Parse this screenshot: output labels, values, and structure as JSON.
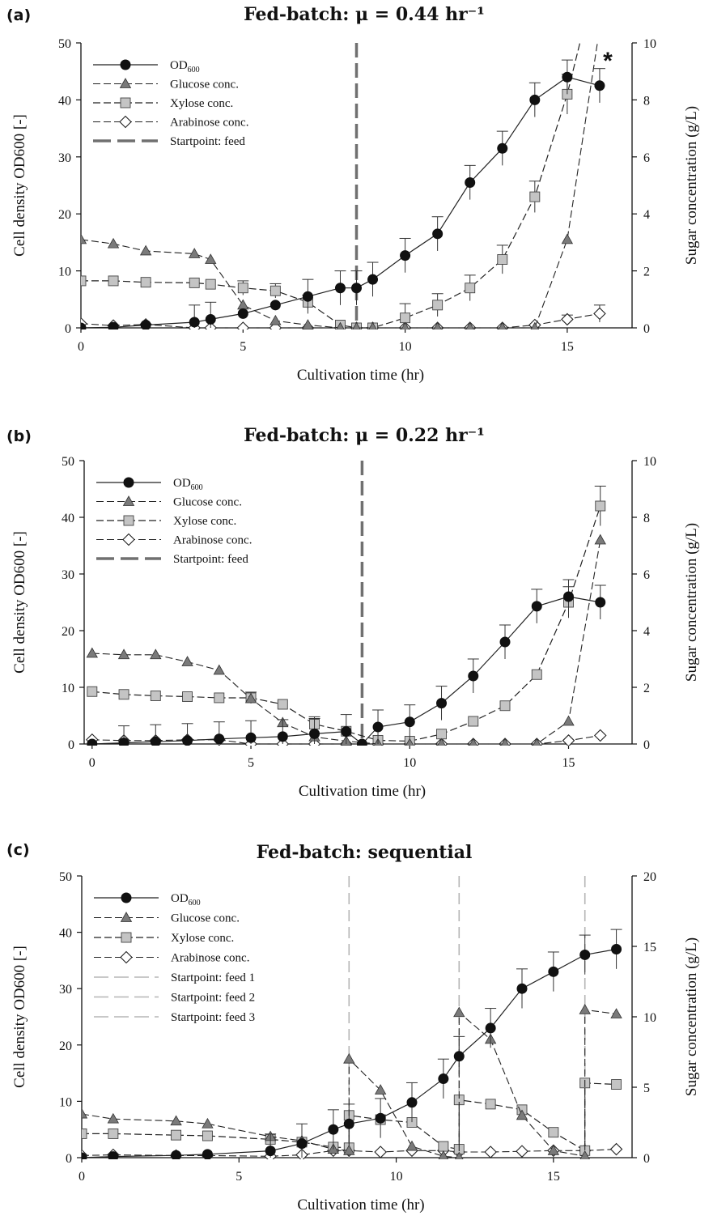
{
  "chart_data": [
    {
      "type": "line",
      "panel_label": "(a)",
      "title": "Fed-batch:  μ = 0.44 hr⁻¹",
      "xlabel": "Cultivation time (hr)",
      "ylabel_left": "Cell density OD600 [-]",
      "ylabel_right": "Sugar concentration (g/L)",
      "xlim": [
        0,
        17
      ],
      "ylim_left": [
        0,
        50
      ],
      "ylim_right": [
        0,
        10
      ],
      "xticks": [
        0,
        5,
        10,
        15
      ],
      "yticks_left": [
        0,
        10,
        20,
        30,
        40,
        50
      ],
      "yticks_right": [
        0,
        2,
        4,
        6,
        8,
        10
      ],
      "legend_position": "top-left",
      "annotation": "*",
      "series": [
        {
          "name": "OD600",
          "axis": "left",
          "marker": "circle",
          "x": [
            0,
            1,
            2,
            3.5,
            4,
            5,
            6,
            7,
            8,
            8.5,
            9,
            10,
            11,
            12,
            13,
            14,
            15,
            16
          ],
          "y": [
            0,
            0.1,
            0.5,
            1,
            1.5,
            2.5,
            4,
            5.5,
            7,
            7,
            8.5,
            12.7,
            16.5,
            25.5,
            31.5,
            40,
            44,
            42.5
          ],
          "err": [
            0,
            0,
            0,
            3,
            3,
            0,
            0,
            3,
            3,
            3,
            3,
            3,
            3,
            3,
            3,
            3,
            3,
            3
          ]
        },
        {
          "name": "Glucose conc.",
          "axis": "right",
          "marker": "triangle",
          "x": [
            0,
            1,
            2,
            3.5,
            4,
            5,
            6,
            7,
            8,
            8.5,
            9,
            10,
            11,
            12,
            13,
            14,
            15,
            16
          ],
          "y": [
            3.1,
            2.95,
            2.7,
            2.6,
            2.4,
            0.8,
            0.25,
            0.1,
            0,
            0,
            0,
            0,
            0,
            0,
            0,
            0,
            3.1,
            10.5
          ]
        },
        {
          "name": "Xylose conc.",
          "axis": "right",
          "marker": "square",
          "x": [
            0,
            1,
            2,
            3.5,
            4,
            5,
            6,
            7,
            8,
            8.5,
            9,
            10,
            11,
            12,
            13,
            14,
            15,
            15.5
          ],
          "y": [
            1.65,
            1.65,
            1.6,
            1.58,
            1.53,
            1.4,
            1.3,
            0.9,
            0.1,
            0,
            0,
            0.35,
            0.8,
            1.4,
            2.4,
            4.6,
            8.2,
            10.5
          ],
          "err": [
            0,
            0,
            0,
            0,
            0,
            0.25,
            0.25,
            0.25,
            0,
            0,
            0,
            0.5,
            0.4,
            0.45,
            0.5,
            0.55,
            0.7,
            0
          ]
        },
        {
          "name": "Arabinose conc.",
          "axis": "right",
          "marker": "diamond",
          "x": [
            0,
            1,
            2,
            3.5,
            4,
            5,
            6,
            7,
            8,
            8.5,
            9,
            10,
            11,
            12,
            13,
            14,
            15,
            16
          ],
          "y": [
            0.15,
            0.08,
            0.12,
            0,
            0,
            0,
            0,
            0,
            0,
            0,
            0,
            0,
            0,
            0,
            0,
            0.1,
            0.3,
            0.5
          ],
          "err": [
            0,
            0,
            0,
            0,
            0,
            0,
            0,
            0,
            0,
            0,
            0,
            0,
            0,
            0,
            0,
            0,
            0.15,
            0.3
          ]
        },
        {
          "name": "Startpoint: feed",
          "axis": "vline",
          "x": [
            8.5
          ]
        }
      ]
    },
    {
      "type": "line",
      "panel_label": "(b)",
      "title": "Fed-batch:  μ = 0.22 hr⁻¹",
      "xlabel": "Cultivation time (hr)",
      "ylabel_left": "Cell density OD600 [-]",
      "ylabel_right": "Sugar concentration (g/L)",
      "xlim": [
        -0.25,
        17
      ],
      "ylim_left": [
        0,
        50
      ],
      "ylim_right": [
        0,
        10
      ],
      "xticks": [
        0,
        5,
        10,
        15
      ],
      "yticks_left": [
        0,
        10,
        20,
        30,
        40,
        50
      ],
      "yticks_right": [
        0,
        2,
        4,
        6,
        8,
        10
      ],
      "legend_position": "top-left",
      "series": [
        {
          "name": "OD600",
          "axis": "left",
          "marker": "circle",
          "x": [
            0,
            1,
            2,
            3,
            4,
            5,
            6,
            7,
            8,
            8.5,
            9,
            10,
            11,
            12,
            13,
            14,
            15,
            16
          ],
          "y": [
            0,
            0.2,
            0.4,
            0.6,
            0.9,
            1.1,
            1.3,
            1.8,
            2.2,
            0,
            3,
            3.9,
            7.2,
            12,
            18,
            24.3,
            26,
            25
          ],
          "err": [
            0,
            3,
            3,
            3,
            3,
            3,
            3,
            3,
            3,
            0,
            3,
            3,
            3,
            3,
            3,
            3,
            3,
            3
          ]
        },
        {
          "name": "Glucose conc.",
          "axis": "right",
          "marker": "triangle",
          "x": [
            0,
            1,
            2,
            3,
            4,
            5,
            6,
            7,
            8,
            9,
            10,
            11,
            12,
            13,
            14,
            15,
            16
          ],
          "y": [
            3.2,
            3.15,
            3.15,
            2.9,
            2.6,
            1.6,
            0.75,
            0.25,
            0.1,
            0,
            0,
            0,
            0,
            0,
            0,
            0.8,
            7.2
          ]
        },
        {
          "name": "Xylose conc.",
          "axis": "right",
          "marker": "square",
          "x": [
            0,
            1,
            2,
            3,
            4,
            5,
            6,
            7,
            8,
            9,
            10,
            11,
            12,
            13,
            14,
            15,
            16
          ],
          "y": [
            1.85,
            1.75,
            1.7,
            1.67,
            1.63,
            1.63,
            1.4,
            0.7,
            0.45,
            0.13,
            0.1,
            0.35,
            0.8,
            1.35,
            2.45,
            5,
            8.4
          ],
          "err": [
            0,
            0,
            0,
            0,
            0,
            0.2,
            0,
            0.2,
            0,
            0,
            0,
            0,
            0,
            0,
            0,
            0.55,
            0.7
          ]
        },
        {
          "name": "Arabinose conc.",
          "axis": "right",
          "marker": "diamond",
          "x": [
            0,
            1,
            2,
            3,
            4,
            5,
            6,
            7,
            8,
            9,
            10,
            11,
            12,
            13,
            14,
            15,
            16
          ],
          "y": [
            0.15,
            0.12,
            0.12,
            0.15,
            0.15,
            0,
            0,
            0,
            0,
            0,
            0,
            0,
            0,
            0,
            0,
            0.12,
            0.3
          ]
        },
        {
          "name": "Startpoint: feed",
          "axis": "vline",
          "x": [
            8.5
          ]
        }
      ]
    },
    {
      "type": "line",
      "panel_label": "(c)",
      "title": "Fed-batch: sequential",
      "xlabel": "Cultivation time (hr)",
      "ylabel_left": "Cell density OD600 [-]",
      "ylabel_right": "Sugar concentration (g/L)",
      "xlim": [
        0,
        17.5
      ],
      "ylim_left": [
        0,
        50
      ],
      "ylim_right": [
        0,
        20
      ],
      "xticks": [
        0,
        5,
        10,
        15
      ],
      "yticks_left": [
        0,
        10,
        20,
        30,
        40,
        50
      ],
      "yticks_right": [
        0,
        5,
        10,
        15,
        20
      ],
      "legend_position": "top-left",
      "series": [
        {
          "name": "OD600",
          "axis": "left",
          "marker": "circle",
          "x": [
            0,
            1,
            3,
            4,
            6,
            7,
            8,
            8.5,
            9.5,
            10.5,
            11.5,
            12,
            13,
            14,
            15,
            16,
            17
          ],
          "y": [
            0,
            0.2,
            0.4,
            0.6,
            1.2,
            2.5,
            5,
            6,
            7,
            9.8,
            14,
            18,
            23,
            30,
            33,
            36,
            37
          ],
          "err": [
            0,
            0,
            0,
            0,
            3,
            3.5,
            3.5,
            3.5,
            3.5,
            3.5,
            3.5,
            3.5,
            3.5,
            3.5,
            3.5,
            3.5,
            3.5
          ]
        },
        {
          "name": "Glucose conc.",
          "axis": "right",
          "marker": "triangle",
          "x": [
            0,
            1,
            3,
            4,
            6,
            7,
            8,
            8.5,
            8.5,
            9.5,
            10.5,
            11.5,
            12,
            12,
            13,
            14,
            15,
            16,
            16,
            17
          ],
          "y": [
            3.1,
            2.75,
            2.6,
            2.4,
            1.5,
            1.2,
            0.6,
            0.5,
            7,
            4.8,
            0.8,
            0.1,
            0,
            10.3,
            8.4,
            3,
            0.5,
            0.1,
            10.5,
            10.2
          ]
        },
        {
          "name": "Xylose conc.",
          "axis": "right",
          "marker": "square",
          "x": [
            0,
            1,
            3,
            4,
            6,
            7,
            8,
            8.5,
            8.5,
            9.5,
            10.5,
            11.5,
            12,
            12,
            13,
            14,
            15,
            16,
            16,
            17
          ],
          "y": [
            1.7,
            1.7,
            1.6,
            1.55,
            1.3,
            1.1,
            0.75,
            0.7,
            3,
            2.7,
            2.5,
            0.8,
            0.6,
            4.1,
            3.8,
            3.4,
            1.8,
            0.5,
            5.3,
            5.2
          ]
        },
        {
          "name": "Arabinose conc.",
          "axis": "right",
          "marker": "diamond",
          "x": [
            0,
            1,
            3,
            4,
            6,
            7,
            8,
            8.5,
            9.5,
            10.5,
            11.5,
            12,
            13,
            14,
            15,
            16,
            17
          ],
          "y": [
            0.15,
            0.2,
            0.15,
            0.15,
            0.1,
            0.2,
            0.5,
            0.5,
            0.4,
            0.5,
            0.5,
            0.4,
            0.4,
            0.45,
            0.5,
            0.5,
            0.6
          ]
        },
        {
          "name": "Startpoint: feed 1",
          "axis": "vline",
          "x": [
            8.5
          ]
        },
        {
          "name": "Startpoint: feed 2",
          "axis": "vline",
          "x": [
            12
          ]
        },
        {
          "name": "Startpoint: feed 3",
          "axis": "vline",
          "x": [
            16
          ]
        }
      ]
    }
  ]
}
